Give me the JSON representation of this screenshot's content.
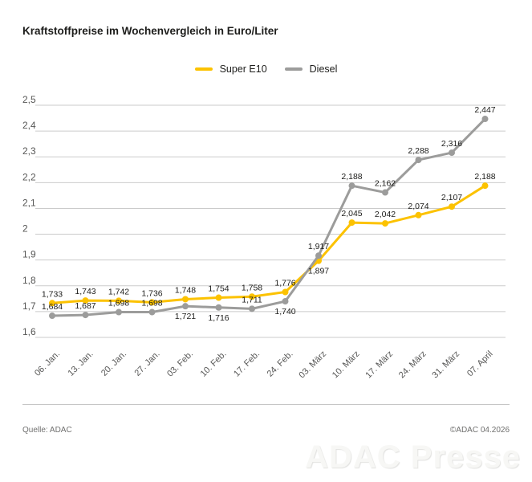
{
  "title": "Kraftstoffpreise im Wochenvergleich in Euro/Liter",
  "chart_data": {
    "type": "line",
    "categories": [
      "06. Jan.",
      "13. Jan.",
      "20. Jan.",
      "27. Jan.",
      "03. Feb.",
      "10. Feb.",
      "17. Feb.",
      "24. Feb.",
      "03. März",
      "10. März",
      "17. März",
      "24. März",
      "31. März",
      "07. April"
    ],
    "series": [
      {
        "name": "Super E10",
        "color": "#FCC200",
        "values": [
          1.733,
          1.743,
          1.742,
          1.736,
          1.748,
          1.754,
          1.758,
          1.776,
          1.897,
          2.045,
          2.042,
          2.074,
          2.107,
          2.188
        ],
        "labels": [
          "1,733",
          "1,743",
          "1,742",
          "1,736",
          "1,748",
          "1,754",
          "1,758",
          "1,776",
          "1,897",
          "2,045",
          "2,042",
          "2,074",
          "2,107",
          "2,188"
        ],
        "label_positions": [
          "above",
          "above",
          "above",
          "above",
          "above",
          "above",
          "above",
          "above",
          "below",
          "above",
          "above",
          "above",
          "above",
          "above"
        ]
      },
      {
        "name": "Diesel",
        "color": "#9C9C9B",
        "values": [
          1.684,
          1.687,
          1.698,
          1.698,
          1.721,
          1.716,
          1.711,
          1.74,
          1.917,
          2.188,
          2.162,
          2.288,
          2.316,
          2.447
        ],
        "labels": [
          "1,684",
          "1,687",
          "1,698",
          "1,698",
          "1,721",
          "1,716",
          "1,711",
          "1,740",
          "1,917",
          "2,188",
          "2,162",
          "2,288",
          "2,316",
          "2,447"
        ],
        "label_positions": [
          "above",
          "above",
          "above",
          "above",
          "below",
          "below",
          "above",
          "below",
          "above",
          "above",
          "above",
          "above",
          "above",
          "above"
        ]
      }
    ],
    "ylim": [
      1.6,
      2.5
    ],
    "ytick_step": 0.1,
    "ytick_labels": [
      "1,6",
      "1,7",
      "1,8",
      "1,9",
      "2",
      "2,1",
      "2,2",
      "2,3",
      "2,4",
      "2,5"
    ],
    "grid": true,
    "legend_position": "top-center",
    "xlabel": "",
    "ylabel": ""
  },
  "footer": {
    "source": "Quelle: ADAC",
    "copyright": "©ADAC 04.2026",
    "watermark": "ADAC Presse"
  },
  "colors": {
    "grid_line": "#CBCBCB",
    "axis_text": "#575756",
    "data_label_text": "#1D1D1B",
    "footer_text": "#6F6F6E"
  }
}
